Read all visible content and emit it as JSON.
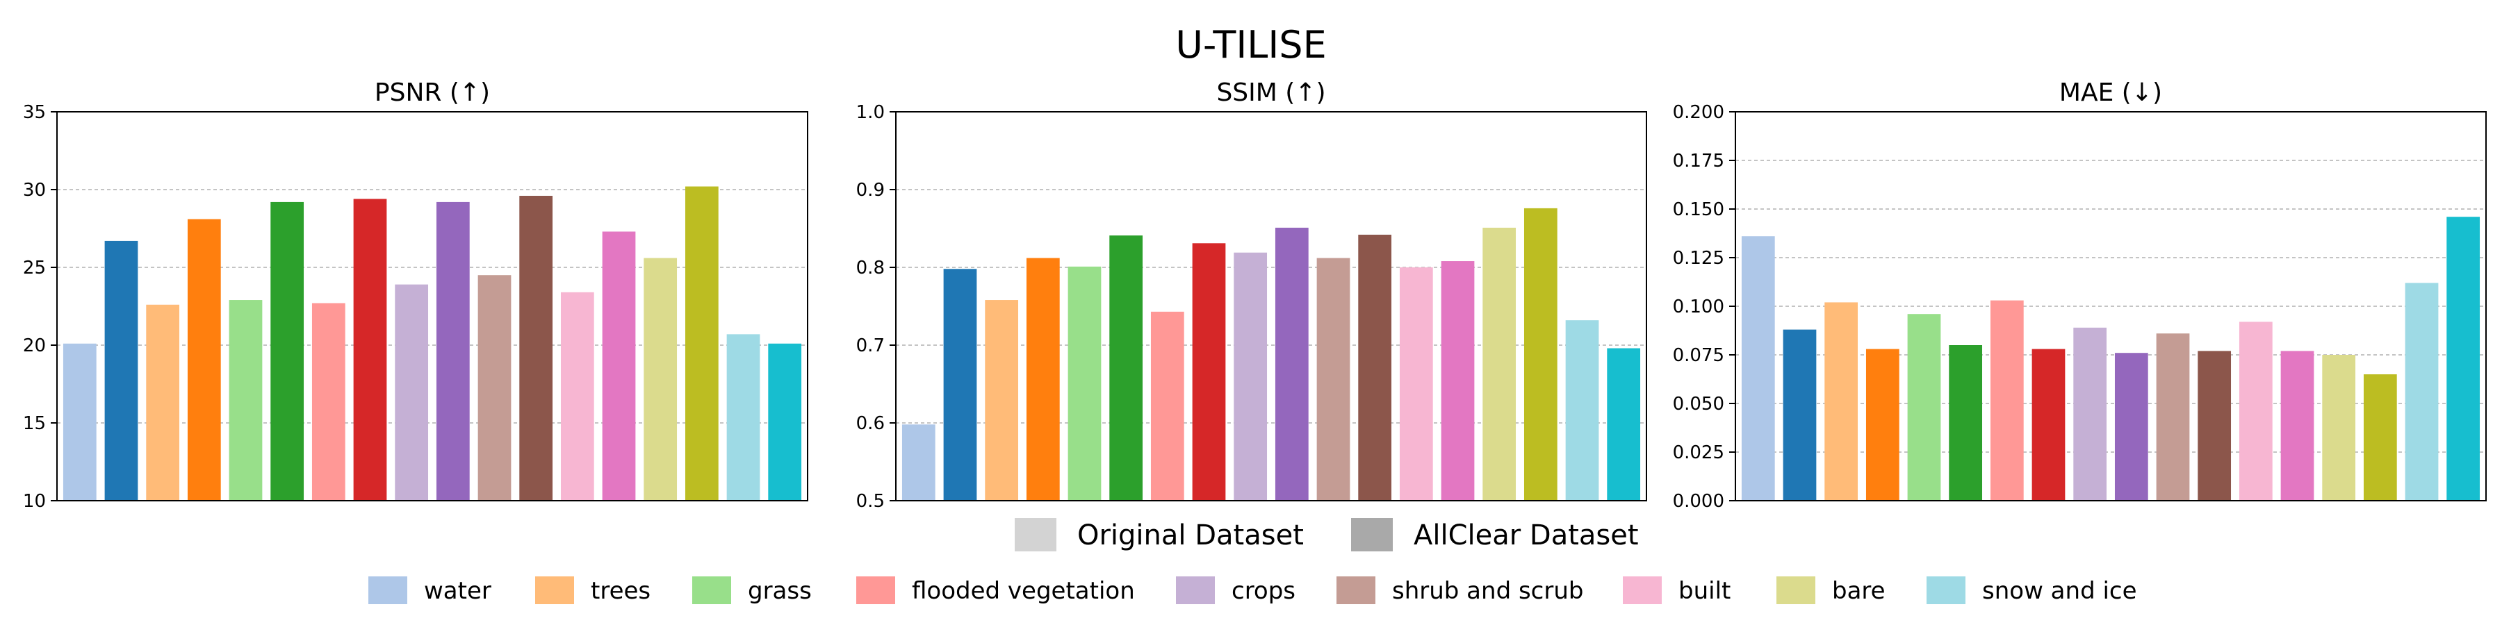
{
  "figure": {
    "title": "U-TILISE",
    "legend_dataset": [
      "Original Dataset",
      "AllClear Dataset"
    ],
    "legend_landcover": [
      "water",
      "trees",
      "grass",
      "flooded vegetation",
      "crops",
      "shrub and scrub",
      "built",
      "bare",
      "snow and ice"
    ]
  },
  "colors": {
    "light": [
      "#aec7e8",
      "#ffbb78",
      "#98df8a",
      "#ff9896",
      "#c5b0d5",
      "#c49c94",
      "#f7b6d2",
      "#dbdb8d",
      "#9edae5"
    ],
    "dark": [
      "#1f77b4",
      "#ff7f0e",
      "#2ca02c",
      "#d62728",
      "#9467bd",
      "#8c564b",
      "#e377c2",
      "#bcbd22",
      "#17becf"
    ],
    "dataset_legend": [
      "#d3d3d3",
      "#a9a9a9"
    ]
  },
  "chart_data": [
    {
      "type": "bar",
      "title": "PSNR (↑)",
      "categories": [
        "water",
        "trees",
        "grass",
        "flooded vegetation",
        "crops",
        "shrub and scrub",
        "built",
        "bare",
        "snow and ice"
      ],
      "series": [
        {
          "name": "Original Dataset",
          "values": [
            20.1,
            22.6,
            22.9,
            22.7,
            23.9,
            24.5,
            23.4,
            25.6,
            20.7
          ]
        },
        {
          "name": "AllClear Dataset",
          "values": [
            26.7,
            28.1,
            29.2,
            29.4,
            29.2,
            29.6,
            27.3,
            30.2,
            20.1
          ]
        }
      ],
      "ylim": [
        10,
        35
      ],
      "yticks": [
        "10",
        "15",
        "20",
        "25",
        "30",
        "35"
      ],
      "grid": true
    },
    {
      "type": "bar",
      "title": "SSIM (↑)",
      "categories": [
        "water",
        "trees",
        "grass",
        "flooded vegetation",
        "crops",
        "shrub and scrub",
        "built",
        "bare",
        "snow and ice"
      ],
      "series": [
        {
          "name": "Original Dataset",
          "values": [
            0.598,
            0.758,
            0.801,
            0.743,
            0.819,
            0.812,
            0.8,
            0.851,
            0.732
          ]
        },
        {
          "name": "AllClear Dataset",
          "values": [
            0.798,
            0.812,
            0.841,
            0.831,
            0.851,
            0.842,
            0.808,
            0.876,
            0.696
          ]
        }
      ],
      "ylim": [
        0.5,
        1.0
      ],
      "yticks": [
        "0.5",
        "0.6",
        "0.7",
        "0.8",
        "0.9",
        "1.0"
      ],
      "grid": true
    },
    {
      "type": "bar",
      "title": "MAE (↓)",
      "categories": [
        "water",
        "trees",
        "grass",
        "flooded vegetation",
        "crops",
        "shrub and scrub",
        "built",
        "bare",
        "snow and ice"
      ],
      "series": [
        {
          "name": "Original Dataset",
          "values": [
            0.136,
            0.102,
            0.096,
            0.103,
            0.089,
            0.086,
            0.092,
            0.075,
            0.112
          ]
        },
        {
          "name": "AllClear Dataset",
          "values": [
            0.088,
            0.078,
            0.08,
            0.078,
            0.076,
            0.077,
            0.077,
            0.065,
            0.146
          ]
        }
      ],
      "ylim": [
        0,
        0.2
      ],
      "yticks": [
        "0.000",
        "0.025",
        "0.050",
        "0.075",
        "0.100",
        "0.125",
        "0.150",
        "0.175",
        "0.200"
      ],
      "grid": true
    }
  ]
}
